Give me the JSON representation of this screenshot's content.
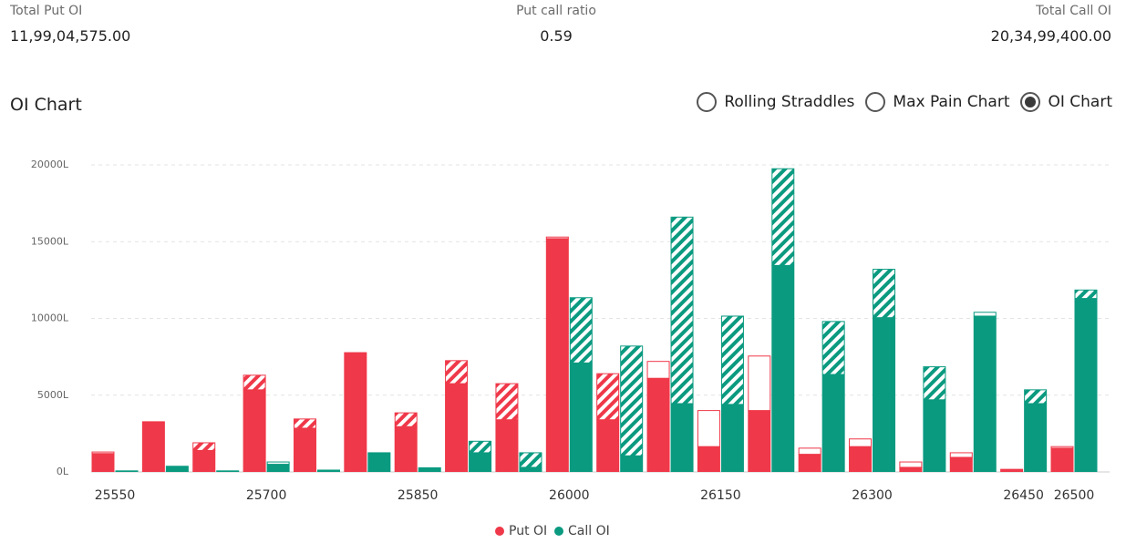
{
  "header": {
    "total_put_oi": {
      "label": "Total Put OI",
      "value": "11,99,04,575.00"
    },
    "put_call_ratio": {
      "label": "Put call ratio",
      "value": "0.59"
    },
    "total_call_oi": {
      "label": "Total Call OI",
      "value": "20,34,99,400.00"
    }
  },
  "section_title": "OI Chart",
  "options": [
    {
      "label": "Rolling Straddles",
      "selected": false
    },
    {
      "label": "Max Pain Chart",
      "selected": false
    },
    {
      "label": "OI Chart",
      "selected": true
    }
  ],
  "chart_data": {
    "type": "bar",
    "categories": [
      "25550",
      null,
      null,
      "25700",
      null,
      null,
      "25850",
      null,
      null,
      "26000",
      null,
      null,
      "26150",
      null,
      null,
      "26300",
      null,
      null,
      "26450",
      "26500"
    ],
    "series": [
      {
        "name": "Put OI",
        "color": "#ef3849",
        "values": [
          1200,
          3300,
          1400,
          5350,
          2850,
          7800,
          2950,
          5750,
          3400,
          15200,
          3400,
          6100,
          1650,
          4000,
          1150,
          1650,
          300,
          950,
          200,
          1550
        ],
        "change": [
          -100,
          0,
          500,
          950,
          600,
          0,
          900,
          1500,
          2350,
          -100,
          3000,
          -1100,
          -2350,
          -3550,
          -400,
          -500,
          -350,
          -300,
          0,
          -100
        ]
      },
      {
        "name": "Call OI",
        "color": "#0a9a80",
        "values": [
          100,
          400,
          100,
          500,
          150,
          1200,
          300,
          1250,
          300,
          7100,
          1050,
          4450,
          4400,
          13450,
          6350,
          10050,
          4700,
          10150,
          4450,
          11300
        ],
        "change": [
          0,
          0,
          0,
          -150,
          0,
          -50,
          0,
          750,
          950,
          4250,
          7150,
          12150,
          5750,
          6300,
          3450,
          3150,
          2150,
          -250,
          900,
          550
        ]
      }
    ],
    "ylim": [
      0,
      20000
    ],
    "yticks": [
      {
        "value": 0,
        "label": "0L"
      },
      {
        "value": 5000,
        "label": "5000L"
      },
      {
        "value": 10000,
        "label": "10000L"
      },
      {
        "value": 15000,
        "label": "15000L"
      },
      {
        "value": 20000,
        "label": "20000L"
      }
    ],
    "grid": true
  }
}
